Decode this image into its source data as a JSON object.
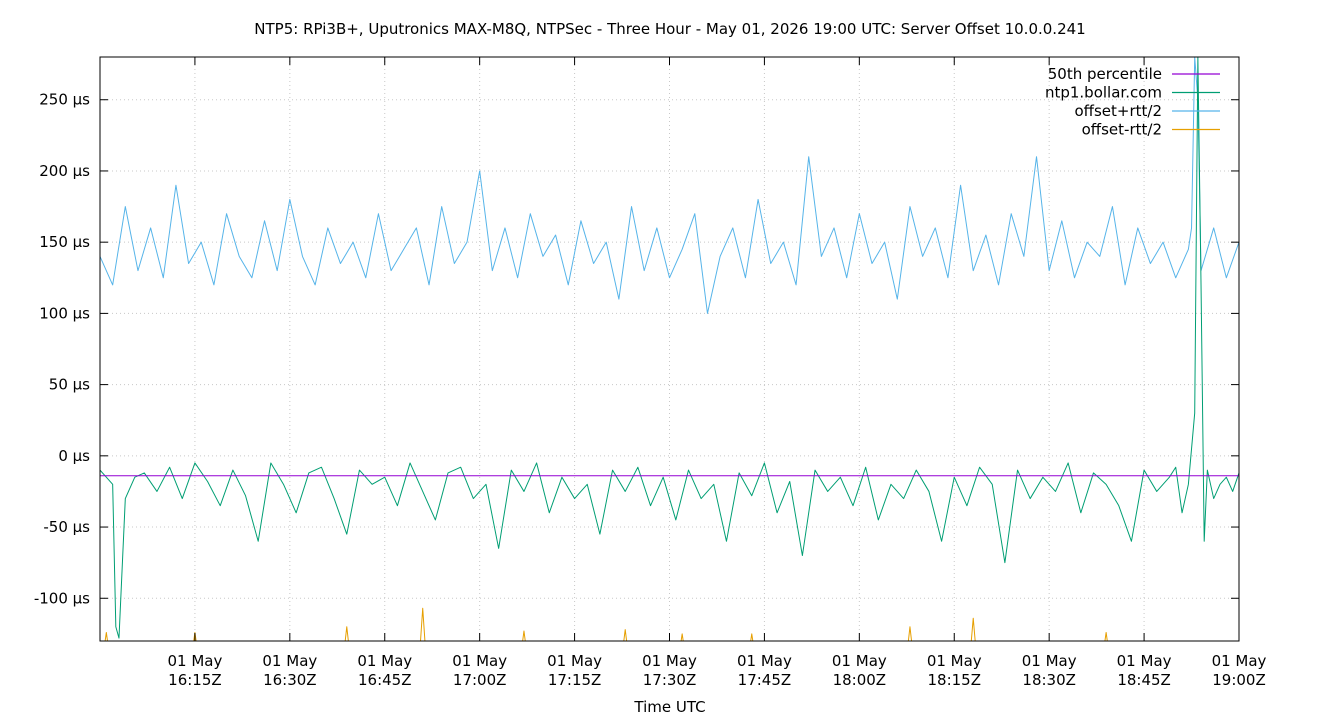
{
  "chart_data": {
    "type": "line",
    "title": "NTP5: RPi3B+, Uputronics MAX-M8Q, NTPSec - Three Hour - May 01, 2026 19:00 UTC: Server Offset 10.0.0.241",
    "xlabel": "Time UTC",
    "ylabel": "",
    "grid": true,
    "legend_position": "top-right",
    "x_range": [
      "2026-05-01 16:00Z",
      "2026-05-01 19:00Z"
    ],
    "x_range_minutes": [
      0,
      180
    ],
    "ylim": [
      -130,
      280
    ],
    "y_unit": "µs",
    "y_ticks": [
      {
        "value": 250,
        "label": "250 µs"
      },
      {
        "value": 200,
        "label": "200 µs"
      },
      {
        "value": 150,
        "label": "150 µs"
      },
      {
        "value": 100,
        "label": "100 µs"
      },
      {
        "value": 50,
        "label": "50 µs"
      },
      {
        "value": 0,
        "label": "0 µs"
      },
      {
        "value": -50,
        "label": "-50 µs"
      },
      {
        "value": -100,
        "label": "-100 µs"
      }
    ],
    "x_ticks": [
      {
        "minute": 15,
        "line1": "01 May",
        "line2": "16:15Z"
      },
      {
        "minute": 30,
        "line1": "01 May",
        "line2": "16:30Z"
      },
      {
        "minute": 45,
        "line1": "01 May",
        "line2": "16:45Z"
      },
      {
        "minute": 60,
        "line1": "01 May",
        "line2": "17:00Z"
      },
      {
        "minute": 75,
        "line1": "01 May",
        "line2": "17:15Z"
      },
      {
        "minute": 90,
        "line1": "01 May",
        "line2": "17:30Z"
      },
      {
        "minute": 105,
        "line1": "01 May",
        "line2": "17:45Z"
      },
      {
        "minute": 120,
        "line1": "01 May",
        "line2": "18:00Z"
      },
      {
        "minute": 135,
        "line1": "01 May",
        "line2": "18:15Z"
      },
      {
        "minute": 150,
        "line1": "01 May",
        "line2": "18:30Z"
      },
      {
        "minute": 165,
        "line1": "01 May",
        "line2": "18:45Z"
      },
      {
        "minute": 180,
        "line1": "01 May",
        "line2": "19:00Z"
      }
    ],
    "series": [
      {
        "name": "50th percentile",
        "color": "#9400d3",
        "x": [
          0,
          180
        ],
        "values": [
          -14,
          -14
        ]
      },
      {
        "name": "ntp1.bollar.com",
        "color": "#009e73",
        "x": [
          0,
          2,
          2.5,
          3,
          4,
          5.5,
          7,
          9,
          11,
          13,
          15,
          17,
          19,
          21,
          23,
          25,
          27,
          29,
          31,
          33,
          35,
          37,
          39,
          41,
          43,
          45,
          47,
          49,
          51,
          53,
          55,
          57,
          59,
          61,
          63,
          65,
          67,
          69,
          71,
          73,
          75,
          77,
          79,
          81,
          83,
          85,
          87,
          89,
          91,
          93,
          95,
          97,
          99,
          101,
          103,
          105,
          107,
          109,
          111,
          113,
          115,
          117,
          119,
          121,
          123,
          125,
          127,
          129,
          131,
          133,
          135,
          137,
          139,
          141,
          143,
          145,
          147,
          149,
          151,
          153,
          155,
          157,
          159,
          161,
          163,
          165,
          167,
          169,
          170,
          171,
          172,
          173,
          173.5,
          174,
          174.5,
          175,
          176,
          177,
          178,
          179,
          180
        ],
        "values": [
          -10,
          -20,
          -120,
          -128,
          -30,
          -15,
          -12,
          -25,
          -8,
          -30,
          -5,
          -18,
          -35,
          -10,
          -28,
          -60,
          -5,
          -20,
          -40,
          -12,
          -8,
          -30,
          -55,
          -10,
          -20,
          -15,
          -35,
          -5,
          -25,
          -45,
          -12,
          -8,
          -30,
          -20,
          -65,
          -10,
          -25,
          -5,
          -40,
          -15,
          -30,
          -20,
          -55,
          -10,
          -25,
          -8,
          -35,
          -15,
          -45,
          -10,
          -30,
          -20,
          -60,
          -12,
          -28,
          -5,
          -40,
          -18,
          -70,
          -10,
          -25,
          -15,
          -35,
          -8,
          -45,
          -20,
          -30,
          -10,
          -25,
          -60,
          -15,
          -35,
          -8,
          -20,
          -75,
          -10,
          -30,
          -15,
          -25,
          -5,
          -40,
          -12,
          -20,
          -35,
          -60,
          -10,
          -25,
          -15,
          -8,
          -40,
          -20,
          30,
          280,
          120,
          -60,
          -10,
          -30,
          -20,
          -15,
          -25,
          -12
        ]
      },
      {
        "name": "offset+rtt/2",
        "color": "#56b4e9",
        "x": [
          0,
          2,
          4,
          6,
          8,
          10,
          12,
          14,
          16,
          18,
          20,
          22,
          24,
          26,
          28,
          30,
          32,
          34,
          36,
          38,
          40,
          42,
          44,
          46,
          48,
          50,
          52,
          54,
          56,
          58,
          60,
          62,
          64,
          66,
          68,
          70,
          72,
          74,
          76,
          78,
          80,
          82,
          84,
          86,
          88,
          90,
          92,
          94,
          96,
          98,
          100,
          102,
          104,
          106,
          108,
          110,
          112,
          114,
          116,
          118,
          120,
          122,
          124,
          126,
          128,
          130,
          132,
          134,
          136,
          138,
          140,
          142,
          144,
          146,
          148,
          150,
          152,
          154,
          156,
          158,
          160,
          162,
          164,
          166,
          168,
          170,
          172,
          172.5,
          173,
          173.5,
          174,
          176,
          178,
          180
        ],
        "values": [
          140,
          120,
          175,
          130,
          160,
          125,
          190,
          135,
          150,
          120,
          170,
          140,
          125,
          165,
          130,
          180,
          140,
          120,
          160,
          135,
          150,
          125,
          170,
          130,
          145,
          160,
          120,
          175,
          135,
          150,
          200,
          130,
          160,
          125,
          170,
          140,
          155,
          120,
          165,
          135,
          150,
          110,
          175,
          130,
          160,
          125,
          145,
          170,
          100,
          140,
          160,
          125,
          180,
          135,
          150,
          120,
          210,
          140,
          160,
          125,
          170,
          135,
          150,
          110,
          175,
          140,
          160,
          125,
          190,
          130,
          155,
          120,
          170,
          140,
          210,
          130,
          165,
          125,
          150,
          140,
          175,
          120,
          160,
          135,
          150,
          125,
          145,
          160,
          280,
          250,
          130,
          160,
          125,
          150
        ]
      },
      {
        "name": "offset-rtt/2",
        "color": "#e69f00",
        "x": [
          0,
          0.5,
          1,
          1.5,
          2,
          14,
          14.5,
          15,
          15.5,
          16,
          38,
          38.5,
          39,
          39.5,
          40,
          50,
          50.5,
          51,
          51.5,
          52,
          66,
          66.5,
          67,
          67.5,
          68,
          82,
          82.5,
          83,
          83.5,
          84,
          91,
          91.5,
          92,
          92.5,
          93,
          102,
          102.5,
          103,
          103.5,
          104,
          127,
          127.5,
          128,
          128.5,
          129,
          137,
          137.5,
          138,
          138.5,
          139,
          158,
          158.5,
          159,
          159.5,
          160,
          180
        ],
        "values": [
          -140,
          -140,
          -124,
          -140,
          -140,
          -140,
          -140,
          -124,
          -140,
          -140,
          -140,
          -140,
          -120,
          -140,
          -140,
          -140,
          -140,
          -107,
          -140,
          -140,
          -140,
          -140,
          -123,
          -140,
          -140,
          -140,
          -140,
          -122,
          -140,
          -140,
          -140,
          -140,
          -125,
          -140,
          -140,
          -140,
          -140,
          -125,
          -140,
          -140,
          -140,
          -140,
          -120,
          -140,
          -140,
          -140,
          -140,
          -114,
          -140,
          -140,
          -140,
          -140,
          -124,
          -140,
          -140,
          -140
        ]
      }
    ]
  }
}
